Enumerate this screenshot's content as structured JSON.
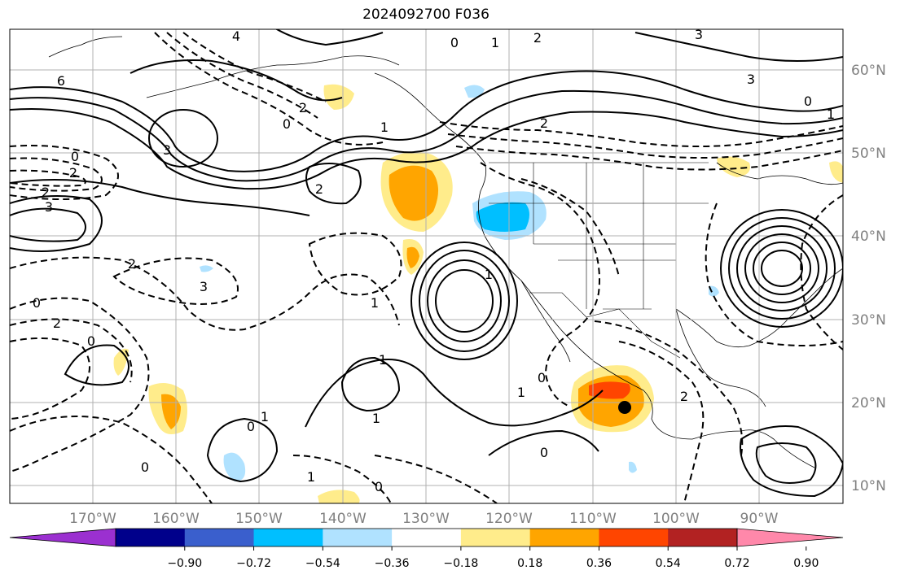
{
  "title": "2024092700 F036",
  "lon_labels": [
    "170°W",
    "160°W",
    "150°W",
    "140°W",
    "130°W",
    "120°W",
    "110°W",
    "100°W",
    "90°W"
  ],
  "lat_labels": [
    "60°N",
    "50°N",
    "40°N",
    "30°N",
    "20°N",
    "10°N"
  ],
  "colorbar": {
    "tick_labels": [
      "−0.90",
      "−0.72",
      "−0.54",
      "−0.36",
      "−0.18",
      "0.18",
      "0.36",
      "0.54",
      "0.72",
      "0.90"
    ],
    "colors": [
      "#9b30d0",
      "#00008b",
      "#3a5fcd",
      "#00bfff",
      "#b0e2ff",
      "#ffffff",
      "#ffec8b",
      "#ffa500",
      "#ff4500",
      "#b22222",
      "#ff88aa"
    ]
  },
  "contour_labels": [
    "4",
    "0",
    "1",
    "2",
    "3",
    "6",
    "3",
    "2",
    "0",
    "1",
    "2",
    "3",
    "0",
    "2",
    "1",
    "0",
    "2",
    "3",
    "2",
    "2",
    "3",
    "0",
    "2",
    "1",
    "1",
    "0",
    "1",
    "0",
    "1",
    "1",
    "0",
    "1",
    "0",
    "2",
    "0",
    "1",
    "0"
  ],
  "marker": {
    "name": "storm-center",
    "color": "#000000"
  }
}
